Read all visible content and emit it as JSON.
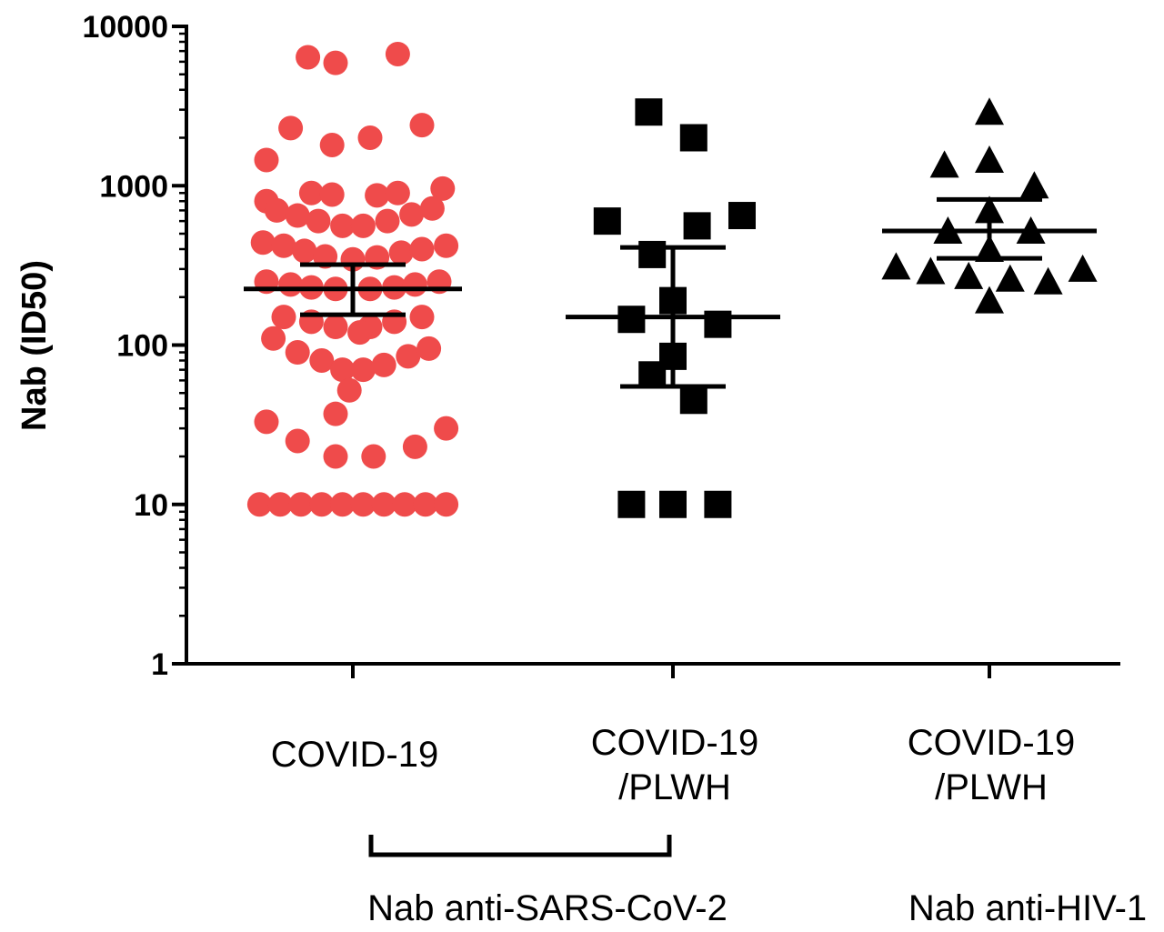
{
  "chart_data": {
    "type": "scatter",
    "title": "",
    "ylabel": "Nab (ID50)",
    "yscale": "log",
    "ylim": [
      1,
      10000
    ],
    "yticks": [
      "1",
      "10",
      "100",
      "1000",
      "10000"
    ],
    "grid": false,
    "colors": {
      "covid": "#ef4b4b",
      "plwh": "#000000",
      "axis": "#000000"
    },
    "categories": [
      {
        "label_lines": [
          "COVID-19"
        ]
      },
      {
        "label_lines": [
          "COVID-19",
          "/PLWH"
        ]
      },
      {
        "label_lines": [
          "COVID-19",
          "/PLWH"
        ]
      }
    ],
    "brackets": [
      {
        "label": "Nab anti-SARS-CoV-2",
        "from_category": 0,
        "to_category": 1
      }
    ],
    "group_labels": [
      {
        "label": "Nab anti-HIV-1",
        "category": 2
      }
    ],
    "series": [
      {
        "category": 0,
        "marker": "circle",
        "color": "#ef4b4b",
        "median": 225,
        "ci": [
          155,
          320
        ],
        "points": [
          {
            "x": -0.13,
            "y": 6400
          },
          {
            "x": -0.05,
            "y": 5900
          },
          {
            "x": 0.13,
            "y": 6700
          },
          {
            "x": -0.18,
            "y": 2300
          },
          {
            "x": -0.06,
            "y": 1800
          },
          {
            "x": 0.05,
            "y": 2000
          },
          {
            "x": 0.2,
            "y": 2400
          },
          {
            "x": -0.25,
            "y": 1450
          },
          {
            "x": -0.25,
            "y": 800
          },
          {
            "x": -0.12,
            "y": 900
          },
          {
            "x": -0.06,
            "y": 880
          },
          {
            "x": 0.07,
            "y": 870
          },
          {
            "x": 0.13,
            "y": 900
          },
          {
            "x": 0.26,
            "y": 960
          },
          {
            "x": -0.22,
            "y": 700
          },
          {
            "x": -0.16,
            "y": 650
          },
          {
            "x": -0.1,
            "y": 600
          },
          {
            "x": -0.03,
            "y": 560
          },
          {
            "x": 0.03,
            "y": 560
          },
          {
            "x": 0.1,
            "y": 600
          },
          {
            "x": 0.17,
            "y": 660
          },
          {
            "x": 0.23,
            "y": 720
          },
          {
            "x": -0.26,
            "y": 440
          },
          {
            "x": -0.2,
            "y": 420
          },
          {
            "x": -0.14,
            "y": 390
          },
          {
            "x": -0.08,
            "y": 360
          },
          {
            "x": 0.0,
            "y": 345
          },
          {
            "x": 0.07,
            "y": 355
          },
          {
            "x": 0.14,
            "y": 380
          },
          {
            "x": 0.2,
            "y": 400
          },
          {
            "x": 0.27,
            "y": 420
          },
          {
            "x": -0.25,
            "y": 250
          },
          {
            "x": -0.18,
            "y": 240
          },
          {
            "x": -0.12,
            "y": 230
          },
          {
            "x": -0.05,
            "y": 225
          },
          {
            "x": 0.05,
            "y": 225
          },
          {
            "x": 0.12,
            "y": 230
          },
          {
            "x": 0.18,
            "y": 240
          },
          {
            "x": 0.25,
            "y": 250
          },
          {
            "x": -0.2,
            "y": 150
          },
          {
            "x": -0.12,
            "y": 140
          },
          {
            "x": -0.05,
            "y": 130
          },
          {
            "x": 0.05,
            "y": 130
          },
          {
            "x": 0.12,
            "y": 140
          },
          {
            "x": 0.2,
            "y": 150
          },
          {
            "x": -0.23,
            "y": 110
          },
          {
            "x": 0.02,
            "y": 120
          },
          {
            "x": -0.16,
            "y": 90
          },
          {
            "x": -0.09,
            "y": 80
          },
          {
            "x": -0.03,
            "y": 70
          },
          {
            "x": 0.03,
            "y": 70
          },
          {
            "x": 0.09,
            "y": 75
          },
          {
            "x": 0.16,
            "y": 85
          },
          {
            "x": 0.22,
            "y": 95
          },
          {
            "x": -0.01,
            "y": 52
          },
          {
            "x": -0.25,
            "y": 33
          },
          {
            "x": -0.05,
            "y": 37
          },
          {
            "x": 0.27,
            "y": 30
          },
          {
            "x": -0.16,
            "y": 25
          },
          {
            "x": 0.18,
            "y": 23
          },
          {
            "x": -0.05,
            "y": 20
          },
          {
            "x": 0.06,
            "y": 20
          },
          {
            "x": -0.27,
            "y": 10
          },
          {
            "x": -0.21,
            "y": 10
          },
          {
            "x": -0.15,
            "y": 10
          },
          {
            "x": -0.09,
            "y": 10
          },
          {
            "x": -0.03,
            "y": 10
          },
          {
            "x": 0.03,
            "y": 10
          },
          {
            "x": 0.09,
            "y": 10
          },
          {
            "x": 0.15,
            "y": 10
          },
          {
            "x": 0.21,
            "y": 10
          },
          {
            "x": 0.27,
            "y": 10
          }
        ]
      },
      {
        "category": 1,
        "marker": "square",
        "color": "#000000",
        "median": 150,
        "ci": [
          55,
          410
        ],
        "points": [
          {
            "x": -0.07,
            "y": 2900
          },
          {
            "x": 0.06,
            "y": 2000
          },
          {
            "x": 0.2,
            "y": 650
          },
          {
            "x": -0.19,
            "y": 600
          },
          {
            "x": 0.07,
            "y": 560
          },
          {
            "x": -0.06,
            "y": 370
          },
          {
            "x": 0.0,
            "y": 190
          },
          {
            "x": -0.12,
            "y": 145
          },
          {
            "x": 0.13,
            "y": 135
          },
          {
            "x": 0.0,
            "y": 85
          },
          {
            "x": -0.06,
            "y": 65
          },
          {
            "x": 0.06,
            "y": 45
          },
          {
            "x": -0.12,
            "y": 10
          },
          {
            "x": 0.0,
            "y": 10
          },
          {
            "x": 0.13,
            "y": 10
          }
        ]
      },
      {
        "category": 2,
        "marker": "triangle",
        "color": "#000000",
        "median": 520,
        "ci": [
          350,
          820
        ],
        "points": [
          {
            "x": 0.0,
            "y": 2900
          },
          {
            "x": -0.13,
            "y": 1350
          },
          {
            "x": 0.0,
            "y": 1450
          },
          {
            "x": 0.13,
            "y": 1000
          },
          {
            "x": 0.0,
            "y": 700
          },
          {
            "x": -0.12,
            "y": 520
          },
          {
            "x": 0.12,
            "y": 520
          },
          {
            "x": 0.0,
            "y": 400
          },
          {
            "x": -0.27,
            "y": 310
          },
          {
            "x": -0.17,
            "y": 290
          },
          {
            "x": -0.06,
            "y": 270
          },
          {
            "x": 0.06,
            "y": 260
          },
          {
            "x": 0.17,
            "y": 250
          },
          {
            "x": 0.27,
            "y": 300
          },
          {
            "x": 0.0,
            "y": 190
          }
        ]
      }
    ]
  }
}
